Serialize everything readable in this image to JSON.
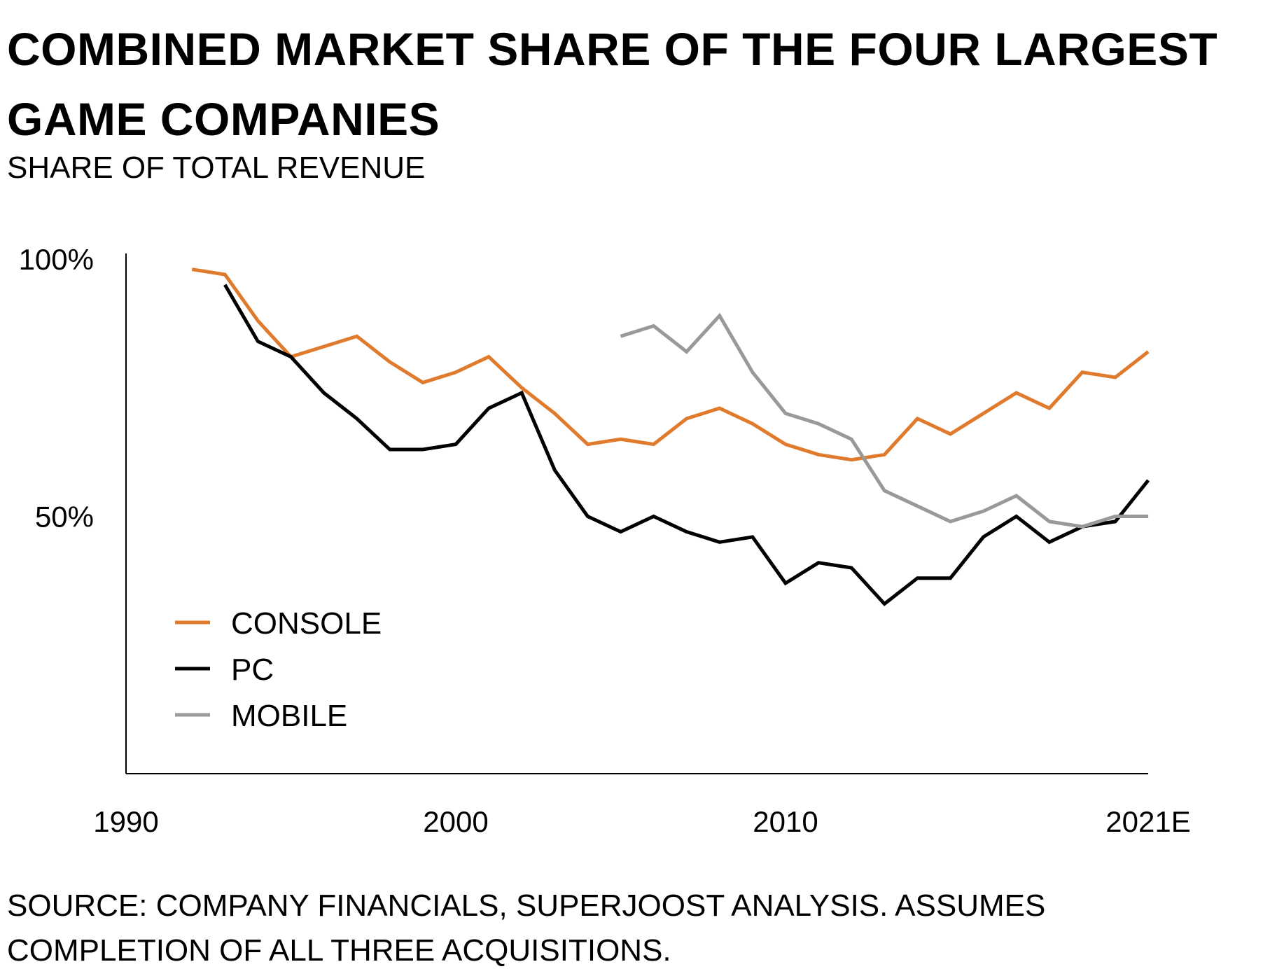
{
  "chart_data": {
    "type": "line",
    "title": "COMBINED MARKET SHARE OF THE FOUR LARGEST GAME COMPANIES",
    "subtitle": "SHARE OF TOTAL REVENUE",
    "xlabel": "",
    "ylabel": "",
    "x_ticks": [
      "1990",
      "2000",
      "2010",
      "2021E"
    ],
    "y_ticks": [
      "100%",
      "50%"
    ],
    "xlim": [
      1990,
      2021
    ],
    "ylim": [
      0,
      100
    ],
    "grid": false,
    "legend_position": "bottom-left",
    "series": [
      {
        "name": "CONSOLE",
        "color": "#e07b2e",
        "x": [
          1992,
          1993,
          1994,
          1995,
          1996,
          1997,
          1998,
          1999,
          2000,
          2001,
          2002,
          2003,
          2004,
          2005,
          2006,
          2007,
          2008,
          2009,
          2010,
          2011,
          2012,
          2013,
          2014,
          2015,
          2016,
          2017,
          2018,
          2019,
          2020,
          2021
        ],
        "y": [
          98,
          97,
          88,
          81,
          83,
          85,
          80,
          76,
          78,
          81,
          75,
          70,
          64,
          65,
          64,
          69,
          71,
          68,
          64,
          62,
          61,
          62,
          69,
          66,
          70,
          74,
          71,
          78,
          77,
          82
        ]
      },
      {
        "name": "PC",
        "color": "#000000",
        "x": [
          1993,
          1994,
          1995,
          1996,
          1997,
          1998,
          1999,
          2000,
          2001,
          2002,
          2003,
          2004,
          2005,
          2006,
          2007,
          2008,
          2009,
          2010,
          2011,
          2012,
          2013,
          2014,
          2015,
          2016,
          2017,
          2018,
          2019,
          2020,
          2021
        ],
        "y": [
          95,
          84,
          81,
          74,
          69,
          63,
          63,
          64,
          71,
          74,
          59,
          50,
          47,
          50,
          47,
          45,
          46,
          37,
          41,
          40,
          33,
          38,
          38,
          46,
          50,
          45,
          48,
          49,
          57
        ]
      },
      {
        "name": "MOBILE",
        "color": "#999999",
        "x": [
          2005,
          2006,
          2007,
          2008,
          2009,
          2010,
          2011,
          2012,
          2013,
          2014,
          2015,
          2016,
          2017,
          2018,
          2019,
          2020,
          2021
        ],
        "y": [
          85,
          87,
          82,
          89,
          78,
          70,
          68,
          65,
          55,
          52,
          49,
          51,
          54,
          49,
          48,
          50,
          50
        ]
      }
    ]
  },
  "source": "SOURCE: COMPANY FINANCIALS, SUPERJOOST ANALYSIS. ASSUMES COMPLETION OF ALL THREE ACQUISITIONS."
}
